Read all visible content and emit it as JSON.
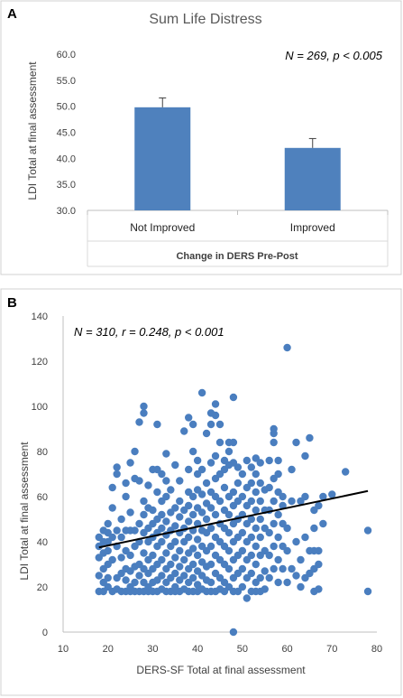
{
  "panels": {
    "a_letter": "A",
    "b_letter": "B"
  },
  "colors": {
    "bar": "#4f81bd",
    "point": "#4a7ebf",
    "trend": "#000000"
  },
  "chart_data": [
    {
      "type": "bar",
      "title": "Sum Life Distress",
      "annotation": "N = 269, p < 0.005",
      "categories": [
        "Not Improved",
        "Improved"
      ],
      "values": [
        49.8,
        42.0
      ],
      "error": [
        1.8,
        1.8
      ],
      "ylabel": "LDI Total at final assessment",
      "xlabel": "Change in DERS Pre-Post",
      "ylim": [
        30,
        60
      ],
      "yticks": [
        "30.0",
        "35.0",
        "40.0",
        "45.0",
        "50.0",
        "55.0",
        "60.0"
      ]
    },
    {
      "type": "scatter",
      "annotation": "N = 310, r = 0.248, p < 0.001",
      "xlabel": "DERS-SF Total at final assessment",
      "ylabel": "LDI Total at final assessment",
      "xlim": [
        10,
        80
      ],
      "ylim": [
        0,
        140
      ],
      "xticks": [
        "10",
        "20",
        "30",
        "40",
        "50",
        "60",
        "70",
        "80"
      ],
      "yticks": [
        "0",
        "20",
        "40",
        "60",
        "80",
        "100",
        "120",
        "140"
      ],
      "trendline": {
        "x": [
          18,
          78
        ],
        "y": [
          37.5,
          62.5
        ]
      },
      "points": [
        [
          18,
          18
        ],
        [
          18,
          25
        ],
        [
          18,
          33
        ],
        [
          18,
          38
        ],
        [
          18,
          42
        ],
        [
          19,
          18
        ],
        [
          19,
          22
        ],
        [
          19,
          28
        ],
        [
          19,
          35
        ],
        [
          19,
          40
        ],
        [
          19,
          45
        ],
        [
          20,
          20
        ],
        [
          20,
          24
        ],
        [
          20,
          30
        ],
        [
          20,
          36
        ],
        [
          20,
          40
        ],
        [
          20,
          44
        ],
        [
          20,
          48
        ],
        [
          21,
          18
        ],
        [
          21,
          32
        ],
        [
          21,
          42
        ],
        [
          21,
          55
        ],
        [
          21,
          64
        ],
        [
          22,
          19
        ],
        [
          22,
          24
        ],
        [
          22,
          38
        ],
        [
          22,
          45
        ],
        [
          22,
          70
        ],
        [
          22,
          73
        ],
        [
          23,
          18
        ],
        [
          23,
          26
        ],
        [
          23,
          33
        ],
        [
          23,
          42
        ],
        [
          23,
          50
        ],
        [
          24,
          18
        ],
        [
          24,
          23
        ],
        [
          24,
          28
        ],
        [
          24,
          36
        ],
        [
          24,
          45
        ],
        [
          24,
          60
        ],
        [
          24,
          66
        ],
        [
          25,
          18
        ],
        [
          25,
          20
        ],
        [
          25,
          27
        ],
        [
          25,
          34
        ],
        [
          25,
          45
        ],
        [
          25,
          53
        ],
        [
          25,
          75
        ],
        [
          26,
          18
        ],
        [
          26,
          22
        ],
        [
          26,
          29
        ],
        [
          26,
          38
        ],
        [
          26,
          45
        ],
        [
          26,
          68
        ],
        [
          26,
          80
        ],
        [
          27,
          18
        ],
        [
          27,
          25
        ],
        [
          27,
          30
        ],
        [
          27,
          40
        ],
        [
          27,
          48
        ],
        [
          27,
          67
        ],
        [
          27,
          93
        ],
        [
          28,
          18
        ],
        [
          28,
          22
        ],
        [
          28,
          28
        ],
        [
          28,
          35
        ],
        [
          28,
          44
        ],
        [
          28,
          52
        ],
        [
          28,
          58
        ],
        [
          28,
          97
        ],
        [
          28,
          100
        ],
        [
          29,
          18
        ],
        [
          29,
          20
        ],
        [
          29,
          26
        ],
        [
          29,
          32
        ],
        [
          29,
          40
        ],
        [
          29,
          46
        ],
        [
          29,
          55
        ],
        [
          29,
          65
        ],
        [
          30,
          18
        ],
        [
          30,
          22
        ],
        [
          30,
          28
        ],
        [
          30,
          34
        ],
        [
          30,
          42
        ],
        [
          30,
          48
        ],
        [
          30,
          54
        ],
        [
          30,
          72
        ],
        [
          31,
          18
        ],
        [
          31,
          23
        ],
        [
          31,
          30
        ],
        [
          31,
          38
        ],
        [
          31,
          44
        ],
        [
          31,
          50
        ],
        [
          31,
          62
        ],
        [
          31,
          72
        ],
        [
          31,
          92
        ],
        [
          32,
          19
        ],
        [
          32,
          25
        ],
        [
          32,
          32
        ],
        [
          32,
          40
        ],
        [
          32,
          46
        ],
        [
          32,
          52
        ],
        [
          32,
          58
        ],
        [
          32,
          70
        ],
        [
          33,
          18
        ],
        [
          33,
          22
        ],
        [
          33,
          28
        ],
        [
          33,
          35
        ],
        [
          33,
          43
        ],
        [
          33,
          49
        ],
        [
          33,
          60
        ],
        [
          33,
          67
        ],
        [
          33,
          79
        ],
        [
          34,
          18
        ],
        [
          34,
          24
        ],
        [
          34,
          30
        ],
        [
          34,
          38
        ],
        [
          34,
          45
        ],
        [
          34,
          53
        ],
        [
          34,
          63
        ],
        [
          35,
          18
        ],
        [
          35,
          20
        ],
        [
          35,
          26
        ],
        [
          35,
          33
        ],
        [
          35,
          40
        ],
        [
          35,
          47
        ],
        [
          35,
          55
        ],
        [
          35,
          74
        ],
        [
          36,
          18
        ],
        [
          36,
          23
        ],
        [
          36,
          29
        ],
        [
          36,
          36
        ],
        [
          36,
          44
        ],
        [
          36,
          51
        ],
        [
          36,
          58
        ],
        [
          36,
          67
        ],
        [
          37,
          19
        ],
        [
          37,
          25
        ],
        [
          37,
          32
        ],
        [
          37,
          40
        ],
        [
          37,
          46
        ],
        [
          37,
          54
        ],
        [
          37,
          89
        ],
        [
          38,
          18
        ],
        [
          38,
          22
        ],
        [
          38,
          28
        ],
        [
          38,
          35
        ],
        [
          38,
          42
        ],
        [
          38,
          49
        ],
        [
          38,
          56
        ],
        [
          38,
          62
        ],
        [
          38,
          72
        ],
        [
          38,
          95
        ],
        [
          39,
          18
        ],
        [
          39,
          24
        ],
        [
          39,
          30
        ],
        [
          39,
          37
        ],
        [
          39,
          45
        ],
        [
          39,
          52
        ],
        [
          39,
          60
        ],
        [
          39,
          80
        ],
        [
          39,
          92
        ],
        [
          40,
          18
        ],
        [
          40,
          21
        ],
        [
          40,
          27
        ],
        [
          40,
          34
        ],
        [
          40,
          41
        ],
        [
          40,
          48
        ],
        [
          40,
          55
        ],
        [
          40,
          63
        ],
        [
          40,
          70
        ],
        [
          40,
          76
        ],
        [
          41,
          19
        ],
        [
          41,
          25
        ],
        [
          41,
          31
        ],
        [
          41,
          38
        ],
        [
          41,
          45
        ],
        [
          41,
          53
        ],
        [
          41,
          61
        ],
        [
          41,
          72
        ],
        [
          41,
          106
        ],
        [
          42,
          18
        ],
        [
          42,
          23
        ],
        [
          42,
          29
        ],
        [
          42,
          36
        ],
        [
          42,
          44
        ],
        [
          42,
          50
        ],
        [
          42,
          57
        ],
        [
          42,
          66
        ],
        [
          42,
          88
        ],
        [
          43,
          18
        ],
        [
          43,
          22
        ],
        [
          43,
          30
        ],
        [
          43,
          38
        ],
        [
          43,
          46
        ],
        [
          43,
          55
        ],
        [
          43,
          62
        ],
        [
          43,
          75
        ],
        [
          43,
          92
        ],
        [
          43,
          97
        ],
        [
          44,
          18
        ],
        [
          44,
          26
        ],
        [
          44,
          34
        ],
        [
          44,
          42
        ],
        [
          44,
          52
        ],
        [
          44,
          60
        ],
        [
          44,
          68
        ],
        [
          44,
          78
        ],
        [
          44,
          96
        ],
        [
          44,
          101
        ],
        [
          45,
          19
        ],
        [
          45,
          24
        ],
        [
          45,
          32
        ],
        [
          45,
          40
        ],
        [
          45,
          48
        ],
        [
          45,
          58
        ],
        [
          45,
          70
        ],
        [
          45,
          84
        ],
        [
          45,
          92
        ],
        [
          46,
          18
        ],
        [
          46,
          22
        ],
        [
          46,
          30
        ],
        [
          46,
          38
        ],
        [
          46,
          46
        ],
        [
          46,
          54
        ],
        [
          46,
          64
        ],
        [
          46,
          72
        ],
        [
          46,
          76
        ],
        [
          47,
          20
        ],
        [
          47,
          28
        ],
        [
          47,
          36
        ],
        [
          47,
          44
        ],
        [
          47,
          52
        ],
        [
          47,
          60
        ],
        [
          47,
          74
        ],
        [
          47,
          80
        ],
        [
          47,
          84
        ],
        [
          48,
          0
        ],
        [
          48,
          18
        ],
        [
          48,
          24
        ],
        [
          48,
          32
        ],
        [
          48,
          40
        ],
        [
          48,
          48
        ],
        [
          48,
          56
        ],
        [
          48,
          62
        ],
        [
          48,
          75
        ],
        [
          48,
          84
        ],
        [
          48,
          104
        ],
        [
          49,
          18
        ],
        [
          49,
          26
        ],
        [
          49,
          34
        ],
        [
          49,
          42
        ],
        [
          49,
          50
        ],
        [
          49,
          58
        ],
        [
          49,
          66
        ],
        [
          49,
          73
        ],
        [
          50,
          20
        ],
        [
          50,
          28
        ],
        [
          50,
          36
        ],
        [
          50,
          44
        ],
        [
          50,
          52
        ],
        [
          50,
          60
        ],
        [
          50,
          70
        ],
        [
          51,
          15
        ],
        [
          51,
          24
        ],
        [
          51,
          32
        ],
        [
          51,
          40
        ],
        [
          51,
          48
        ],
        [
          51,
          56
        ],
        [
          51,
          64
        ],
        [
          51,
          76
        ],
        [
          52,
          18
        ],
        [
          52,
          26
        ],
        [
          52,
          34
        ],
        [
          52,
          42
        ],
        [
          52,
          50
        ],
        [
          52,
          58
        ],
        [
          52,
          66
        ],
        [
          52,
          73
        ],
        [
          53,
          18
        ],
        [
          53,
          22
        ],
        [
          53,
          30
        ],
        [
          53,
          38
        ],
        [
          53,
          46
        ],
        [
          53,
          54
        ],
        [
          53,
          62
        ],
        [
          53,
          70
        ],
        [
          53,
          77
        ],
        [
          54,
          18
        ],
        [
          54,
          24
        ],
        [
          54,
          34
        ],
        [
          54,
          42
        ],
        [
          54,
          50
        ],
        [
          54,
          58
        ],
        [
          54,
          66
        ],
        [
          54,
          75
        ],
        [
          55,
          19
        ],
        [
          55,
          27
        ],
        [
          55,
          36
        ],
        [
          55,
          46
        ],
        [
          55,
          54
        ],
        [
          55,
          63
        ],
        [
          56,
          24
        ],
        [
          56,
          34
        ],
        [
          56,
          44
        ],
        [
          56,
          54
        ],
        [
          56,
          64
        ],
        [
          56,
          76
        ],
        [
          57,
          28
        ],
        [
          57,
          38
        ],
        [
          57,
          48
        ],
        [
          57,
          58
        ],
        [
          57,
          68
        ],
        [
          57,
          84
        ],
        [
          57,
          88
        ],
        [
          57,
          90
        ],
        [
          58,
          22
        ],
        [
          58,
          32
        ],
        [
          58,
          42
        ],
        [
          58,
          52
        ],
        [
          58,
          62
        ],
        [
          58,
          70
        ],
        [
          58,
          76
        ],
        [
          59,
          28
        ],
        [
          59,
          38
        ],
        [
          59,
          48
        ],
        [
          59,
          56
        ],
        [
          59,
          60
        ],
        [
          60,
          22
        ],
        [
          60,
          36
        ],
        [
          60,
          46
        ],
        [
          60,
          126
        ],
        [
          61,
          28
        ],
        [
          61,
          58
        ],
        [
          61,
          72
        ],
        [
          62,
          25
        ],
        [
          62,
          40
        ],
        [
          62,
          84
        ],
        [
          63,
          20
        ],
        [
          63,
          32
        ],
        [
          63,
          58
        ],
        [
          64,
          24
        ],
        [
          64,
          42
        ],
        [
          64,
          60
        ],
        [
          64,
          78
        ],
        [
          65,
          26
        ],
        [
          65,
          36
        ],
        [
          65,
          86
        ],
        [
          66,
          18
        ],
        [
          66,
          28
        ],
        [
          66,
          36
        ],
        [
          66,
          46
        ],
        [
          66,
          54
        ],
        [
          67,
          19
        ],
        [
          67,
          30
        ],
        [
          67,
          36
        ],
        [
          67,
          56
        ],
        [
          68,
          48
        ],
        [
          68,
          60
        ],
        [
          70,
          61
        ],
        [
          73,
          71
        ],
        [
          78,
          18
        ],
        [
          78,
          45
        ]
      ]
    }
  ]
}
